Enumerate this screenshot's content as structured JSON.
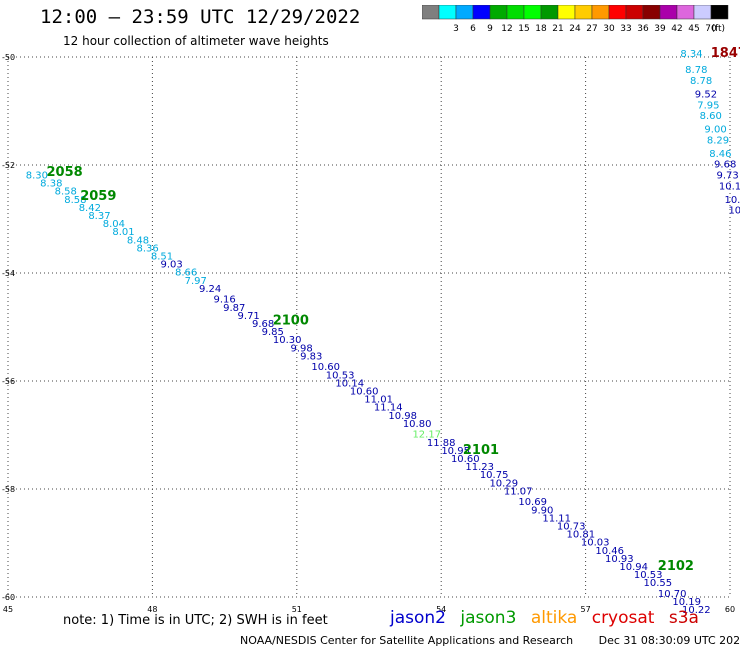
{
  "header": {
    "title": "12:00 – 23:59 UTC 12/29/2022",
    "subtitle": "12 hour collection of altimeter wave heights"
  },
  "legend": {
    "unit": "(ft)",
    "bins": [
      {
        "label": "",
        "color": "#7f7f7f"
      },
      {
        "label": "3",
        "color": "#00ffff"
      },
      {
        "label": "6",
        "color": "#00aaff"
      },
      {
        "label": "9",
        "color": "#0000ff"
      },
      {
        "label": "12",
        "color": "#00aa00"
      },
      {
        "label": "15",
        "color": "#00dd00"
      },
      {
        "label": "18",
        "color": "#00ff00"
      },
      {
        "label": "21",
        "color": "#009900"
      },
      {
        "label": "24",
        "color": "#ffff00"
      },
      {
        "label": "27",
        "color": "#ffcc00"
      },
      {
        "label": "30",
        "color": "#ff9900"
      },
      {
        "label": "33",
        "color": "#ff0000"
      },
      {
        "label": "36",
        "color": "#cc0000"
      },
      {
        "label": "39",
        "color": "#880000"
      },
      {
        "label": "42",
        "color": "#aa00aa"
      },
      {
        "label": "45",
        "color": "#dd66dd"
      },
      {
        "label": "70",
        "color": "#ccccff"
      },
      {
        "label": "",
        "color": "#000000"
      }
    ]
  },
  "note": "note:  1) Time is in UTC;  2) SWH is in feet",
  "satellites": [
    {
      "name": "jason2",
      "color": "#0000cc"
    },
    {
      "name": "jason3",
      "color": "#009900"
    },
    {
      "name": "altika",
      "color": "#ff9900"
    },
    {
      "name": "cryosat",
      "color": "#dd0000"
    },
    {
      "name": "s3a",
      "color": "#cc0000"
    }
  ],
  "footer": {
    "credit": "NOAA/NESDIS Center for Satellite Applications and Research",
    "timestamp": "Dec 31 08:30:09 UTC 2022"
  },
  "chart_data": {
    "type": "scatter",
    "xlim": [
      45,
      60
    ],
    "ylim": [
      -60,
      -50
    ],
    "x_ticks": [
      "45",
      "48",
      "51",
      "54",
      "57",
      "60"
    ],
    "y_ticks": [
      "-50",
      "-52",
      "-54",
      "-56",
      "-58",
      "-60"
    ],
    "grid": true,
    "colors": {
      "cyan": "#00aadd",
      "navy": "#0000aa",
      "lightgreen": "#66ee66",
      "green": "#008800",
      "maroon": "#990000"
    },
    "points": [
      {
        "x": 45.6,
        "y": -52.25,
        "label": "8.30",
        "color": "cyan"
      },
      {
        "x": 45.9,
        "y": -52.4,
        "label": "8.38",
        "color": "cyan"
      },
      {
        "x": 46.2,
        "y": -52.55,
        "label": "8.58",
        "color": "cyan"
      },
      {
        "x": 46.4,
        "y": -52.7,
        "label": "8.58",
        "color": "cyan"
      },
      {
        "x": 46.7,
        "y": -52.85,
        "label": "8.42",
        "color": "cyan"
      },
      {
        "x": 46.9,
        "y": -53.0,
        "label": "8.37",
        "color": "cyan"
      },
      {
        "x": 47.2,
        "y": -53.15,
        "label": "8.04",
        "color": "cyan"
      },
      {
        "x": 47.4,
        "y": -53.3,
        "label": "8.01",
        "color": "cyan"
      },
      {
        "x": 47.7,
        "y": -53.45,
        "label": "8.48",
        "color": "cyan"
      },
      {
        "x": 47.9,
        "y": -53.6,
        "label": "8.36",
        "color": "cyan"
      },
      {
        "x": 48.2,
        "y": -53.75,
        "label": "8.51",
        "color": "cyan"
      },
      {
        "x": 48.4,
        "y": -53.9,
        "label": "9.03",
        "color": "navy"
      },
      {
        "x": 48.7,
        "y": -54.05,
        "label": "8.66",
        "color": "cyan"
      },
      {
        "x": 48.9,
        "y": -54.2,
        "label": "7.97",
        "color": "cyan"
      },
      {
        "x": 49.2,
        "y": -54.35,
        "label": "9.24",
        "color": "navy"
      },
      {
        "x": 49.5,
        "y": -54.55,
        "label": "9.16",
        "color": "navy"
      },
      {
        "x": 49.7,
        "y": -54.7,
        "label": "9.87",
        "color": "navy"
      },
      {
        "x": 50.0,
        "y": -54.85,
        "label": "9.71",
        "color": "navy"
      },
      {
        "x": 50.3,
        "y": -55.0,
        "label": "9.68",
        "color": "navy"
      },
      {
        "x": 50.5,
        "y": -55.15,
        "label": "9.85",
        "color": "navy"
      },
      {
        "x": 50.8,
        "y": -55.3,
        "label": "10.30",
        "color": "navy"
      },
      {
        "x": 51.1,
        "y": -55.45,
        "label": "9.98",
        "color": "navy"
      },
      {
        "x": 51.3,
        "y": -55.6,
        "label": "9.83",
        "color": "navy"
      },
      {
        "x": 51.6,
        "y": -55.8,
        "label": "10.60",
        "color": "navy"
      },
      {
        "x": 51.9,
        "y": -55.95,
        "label": "10.53",
        "color": "navy"
      },
      {
        "x": 52.1,
        "y": -56.1,
        "label": "10.14",
        "color": "navy"
      },
      {
        "x": 52.4,
        "y": -56.25,
        "label": "10.60",
        "color": "navy"
      },
      {
        "x": 52.7,
        "y": -56.4,
        "label": "11.01",
        "color": "navy"
      },
      {
        "x": 52.9,
        "y": -56.55,
        "label": "11.14",
        "color": "navy"
      },
      {
        "x": 53.2,
        "y": -56.7,
        "label": "10.98",
        "color": "navy"
      },
      {
        "x": 53.5,
        "y": -56.85,
        "label": "10.80",
        "color": "navy"
      },
      {
        "x": 53.7,
        "y": -57.05,
        "label": "12.17",
        "color": "lightgreen"
      },
      {
        "x": 54.0,
        "y": -57.2,
        "label": "11.88",
        "color": "navy"
      },
      {
        "x": 54.3,
        "y": -57.35,
        "label": "10.95",
        "color": "navy"
      },
      {
        "x": 54.5,
        "y": -57.5,
        "label": "10.60",
        "color": "navy"
      },
      {
        "x": 54.8,
        "y": -57.65,
        "label": "11.23",
        "color": "navy"
      },
      {
        "x": 55.1,
        "y": -57.8,
        "label": "10.75",
        "color": "navy"
      },
      {
        "x": 55.3,
        "y": -57.95,
        "label": "10.29",
        "color": "navy"
      },
      {
        "x": 55.6,
        "y": -58.1,
        "label": "11.07",
        "color": "navy"
      },
      {
        "x": 55.9,
        "y": -58.3,
        "label": "10.69",
        "color": "navy"
      },
      {
        "x": 56.1,
        "y": -58.45,
        "label": "9.90",
        "color": "navy"
      },
      {
        "x": 56.4,
        "y": -58.6,
        "label": "11.11",
        "color": "navy"
      },
      {
        "x": 56.7,
        "y": -58.75,
        "label": "10.73",
        "color": "navy"
      },
      {
        "x": 56.9,
        "y": -58.9,
        "label": "10.81",
        "color": "navy"
      },
      {
        "x": 57.2,
        "y": -59.05,
        "label": "10.03",
        "color": "navy"
      },
      {
        "x": 57.5,
        "y": -59.2,
        "label": "10.46",
        "color": "navy"
      },
      {
        "x": 57.7,
        "y": -59.35,
        "label": "10.93",
        "color": "navy"
      },
      {
        "x": 58.0,
        "y": -59.5,
        "label": "10.94",
        "color": "navy"
      },
      {
        "x": 58.3,
        "y": -59.65,
        "label": "10.53",
        "color": "navy"
      },
      {
        "x": 58.5,
        "y": -59.8,
        "label": "10.55",
        "color": "navy"
      },
      {
        "x": 58.8,
        "y": -60.0,
        "label": "10.70",
        "color": "navy"
      },
      {
        "x": 59.1,
        "y": -60.15,
        "label": "10.19",
        "color": "navy"
      },
      {
        "x": 59.3,
        "y": -60.3,
        "label": "10.22",
        "color": "navy"
      },
      {
        "x": 59.2,
        "y": -50.0,
        "label": "8.34",
        "color": "cyan"
      },
      {
        "x": 59.3,
        "y": -50.3,
        "label": "8.78",
        "color": "cyan"
      },
      {
        "x": 59.4,
        "y": -50.5,
        "label": "8.78",
        "color": "cyan"
      },
      {
        "x": 59.5,
        "y": -50.75,
        "label": "9.52",
        "color": "navy"
      },
      {
        "x": 59.55,
        "y": -50.95,
        "label": "7.95",
        "color": "cyan"
      },
      {
        "x": 59.6,
        "y": -51.15,
        "label": "8.60",
        "color": "cyan"
      },
      {
        "x": 59.7,
        "y": -51.4,
        "label": "9.00",
        "color": "cyan"
      },
      {
        "x": 59.75,
        "y": -51.6,
        "label": "8.29",
        "color": "cyan"
      },
      {
        "x": 59.8,
        "y": -51.85,
        "label": "8.46",
        "color": "cyan"
      },
      {
        "x": 59.9,
        "y": -52.05,
        "label": "9.68",
        "color": "navy"
      },
      {
        "x": 59.95,
        "y": -52.25,
        "label": "9.73",
        "color": "navy"
      },
      {
        "x": 60.0,
        "y": -52.45,
        "label": "10.1",
        "color": "navy"
      },
      {
        "x": 60.05,
        "y": -52.7,
        "label": "10.",
        "color": "navy"
      },
      {
        "x": 60.1,
        "y": -52.9,
        "label": "10",
        "color": "navy"
      }
    ],
    "annotations": [
      {
        "x": 45.8,
        "y": -52.2,
        "label": "2058",
        "color": "green"
      },
      {
        "x": 46.5,
        "y": -52.65,
        "label": "2059",
        "color": "green"
      },
      {
        "x": 50.5,
        "y": -54.95,
        "label": "2100",
        "color": "green"
      },
      {
        "x": 54.45,
        "y": -57.35,
        "label": "2101",
        "color": "green"
      },
      {
        "x": 58.5,
        "y": -59.5,
        "label": "2102",
        "color": "green"
      },
      {
        "x": 59.6,
        "y": -50.0,
        "label": "1847",
        "color": "maroon"
      }
    ]
  }
}
